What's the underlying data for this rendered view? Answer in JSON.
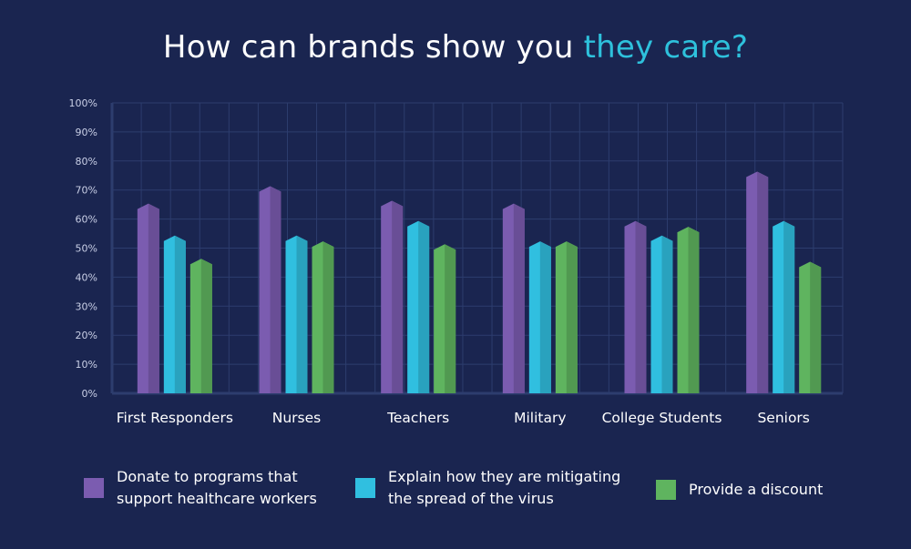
{
  "title": {
    "main": "How can brands show you ",
    "highlight": "they care?"
  },
  "colors": {
    "background": "#1a2550",
    "highlight": "#2ec1dc",
    "grid": "#2d3d6e"
  },
  "chart_data": {
    "type": "bar",
    "categories": [
      "First Responders",
      "Nurses",
      "Teachers",
      "Military",
      "College Students",
      "Seniors"
    ],
    "series": [
      {
        "name": "Donate to programs that support healthcare workers",
        "color": "#7b5cb0",
        "values": [
          65,
          71,
          66,
          65,
          59,
          76
        ]
      },
      {
        "name": "Explain how they are mitigating the spread of the virus",
        "color": "#30bfe0",
        "values": [
          54,
          54,
          59,
          52,
          54,
          59
        ]
      },
      {
        "name": "Provide a discount",
        "color": "#5fb45f",
        "values": [
          46,
          52,
          51,
          52,
          57,
          45
        ]
      }
    ],
    "yticks": [
      "0%",
      "10%",
      "20%",
      "30%",
      "40%",
      "50%",
      "60%",
      "70%",
      "80%",
      "90%",
      "100%"
    ],
    "ylim": [
      0,
      100
    ],
    "grid": true,
    "legend": "bottom"
  },
  "legend": [
    {
      "line1": "Donate to programs that",
      "line2": "support healthcare workers",
      "color": "#7b5cb0"
    },
    {
      "line1": "Explain how they are mitigating",
      "line2": "the spread of the virus",
      "color": "#30bfe0"
    },
    {
      "line1": "Provide a discount",
      "line2": "",
      "color": "#5fb45f"
    }
  ]
}
